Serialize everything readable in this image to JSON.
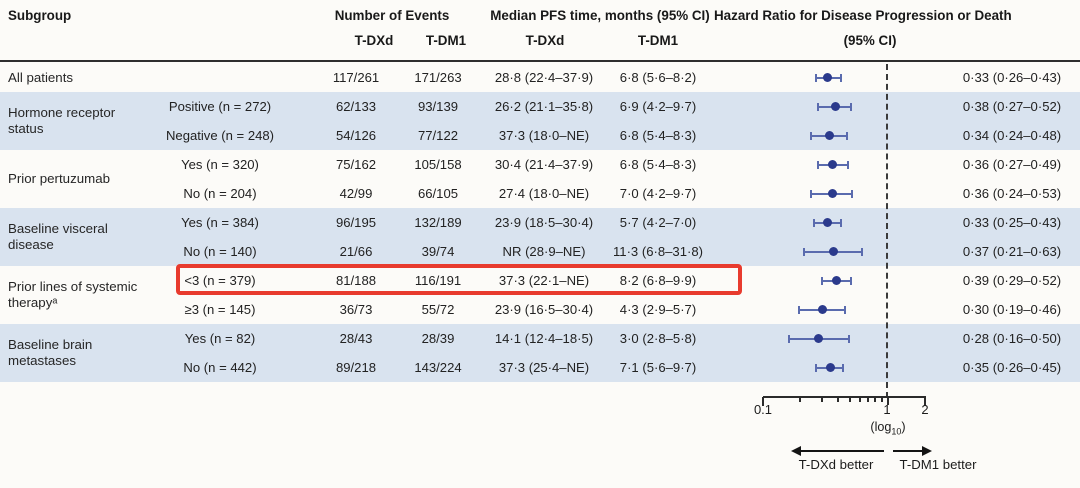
{
  "header": {
    "subgroup": "Subgroup",
    "events_title": "Number of Events",
    "median_title": "Median PFS time, months (95% CI)",
    "hr_title": "Hazard Ratio for Disease Progression or Death",
    "hr_subtitle": "(95% CI)",
    "arm1": "T-DXd",
    "arm2": "T-DM1"
  },
  "colors": {
    "band_shade": "#d9e3ef",
    "marker": "#2b3a8c",
    "whisker": "#5a6bae",
    "highlight_box": "#e83b2e",
    "header_rule": "#2e2e2e"
  },
  "chart_data": {
    "type": "forest",
    "x_scale": "log10",
    "x_range": [
      0.1,
      2
    ],
    "x_ticks": [
      0.1,
      1,
      2
    ],
    "tick_labels": [
      "0.1",
      "1",
      "2"
    ],
    "x_minor_ticks": [
      0.2,
      0.3,
      0.4,
      0.5,
      0.6,
      0.7,
      0.8,
      0.9
    ],
    "ref_line": 1,
    "axis_label": "(log10)",
    "axis_label_pre": "(log",
    "axis_label_sub": "10",
    "axis_label_post": ")",
    "better_left": "T-DXd better",
    "better_right": "T-DM1 better",
    "groups": [
      {
        "label": "All patients",
        "shaded": false,
        "rows": [
          {
            "level": "",
            "events1": "117/261",
            "events2": "171/263",
            "median1": "28·8 (22·4–37·9)",
            "median2": "6·8 (5·6–8·2)",
            "hr_text": "0·33 (0·26–0·43)",
            "hr": 0.33,
            "lo": 0.26,
            "hi": 0.43,
            "highlight": false
          }
        ]
      },
      {
        "label": "Hormone receptor status",
        "shaded": true,
        "rows": [
          {
            "level": "Positive (n = 272)",
            "events1": "62/133",
            "events2": "93/139",
            "median1": "26·2 (21·1–35·8)",
            "median2": "6·9 (4·2–9·7)",
            "hr_text": "0·38 (0·27–0·52)",
            "hr": 0.38,
            "lo": 0.27,
            "hi": 0.52,
            "highlight": false
          },
          {
            "level": "Negative (n = 248)",
            "events1": "54/126",
            "events2": "77/122",
            "median1": "37·3 (18·0–NE)",
            "median2": "6·8 (5·4–8·3)",
            "hr_text": "0·34 (0·24–0·48)",
            "hr": 0.34,
            "lo": 0.24,
            "hi": 0.48,
            "highlight": false
          }
        ]
      },
      {
        "label": "Prior pertuzumab",
        "shaded": false,
        "rows": [
          {
            "level": "Yes (n = 320)",
            "events1": "75/162",
            "events2": "105/158",
            "median1": "30·4 (21·4–37·9)",
            "median2": "6·8 (5·4–8·3)",
            "hr_text": "0·36 (0·27–0·49)",
            "hr": 0.36,
            "lo": 0.27,
            "hi": 0.49,
            "highlight": false
          },
          {
            "level": "No (n = 204)",
            "events1": "42/99",
            "events2": "66/105",
            "median1": "27·4 (18·0–NE)",
            "median2": "7·0 (4·2–9·7)",
            "hr_text": "0·36 (0·24–0·53)",
            "hr": 0.36,
            "lo": 0.24,
            "hi": 0.53,
            "highlight": false
          }
        ]
      },
      {
        "label": "Baseline visceral disease",
        "shaded": true,
        "rows": [
          {
            "level": "Yes (n = 384)",
            "events1": "96/195",
            "events2": "132/189",
            "median1": "23·9 (18·5–30·4)",
            "median2": "5·7 (4·2–7·0)",
            "hr_text": "0·33 (0·25–0·43)",
            "hr": 0.33,
            "lo": 0.25,
            "hi": 0.43,
            "highlight": false
          },
          {
            "level": "No (n = 140)",
            "events1": "21/66",
            "events2": "39/74",
            "median1": "NR (28·9–NE)",
            "median2": "11·3 (6·8–31·8)",
            "hr_text": "0·37 (0·21–0·63)",
            "hr": 0.37,
            "lo": 0.21,
            "hi": 0.63,
            "highlight": false
          }
        ]
      },
      {
        "label": "Prior lines of systemic therapyᵃ",
        "shaded": false,
        "rows": [
          {
            "level": "<3 (n = 379)",
            "events1": "81/188",
            "events2": "116/191",
            "median1": "37·3 (22·1–NE)",
            "median2": "8·2 (6·8–9·9)",
            "hr_text": "0·39 (0·29–0·52)",
            "hr": 0.39,
            "lo": 0.29,
            "hi": 0.52,
            "highlight": true
          },
          {
            "level": "≥3 (n = 145)",
            "events1": "36/73",
            "events2": "55/72",
            "median1": "23·9 (16·5–30·4)",
            "median2": "4·3 (2·9–5·7)",
            "hr_text": "0·30 (0·19–0·46)",
            "hr": 0.3,
            "lo": 0.19,
            "hi": 0.46,
            "highlight": false
          }
        ]
      },
      {
        "label": "Baseline brain metastases",
        "shaded": true,
        "rows": [
          {
            "level": "Yes (n = 82)",
            "events1": "28/43",
            "events2": "28/39",
            "median1": "14·1 (12·4–18·5)",
            "median2": "3·0 (2·8–5·8)",
            "hr_text": "0·28 (0·16–0·50)",
            "hr": 0.28,
            "lo": 0.16,
            "hi": 0.5,
            "highlight": false
          },
          {
            "level": "No (n = 442)",
            "events1": "89/218",
            "events2": "143/224",
            "median1": "37·3 (25·4–NE)",
            "median2": "7·1 (5·6–9·7)",
            "hr_text": "0·35 (0·26–0·45)",
            "hr": 0.35,
            "lo": 0.26,
            "hi": 0.45,
            "highlight": false
          }
        ]
      }
    ]
  }
}
